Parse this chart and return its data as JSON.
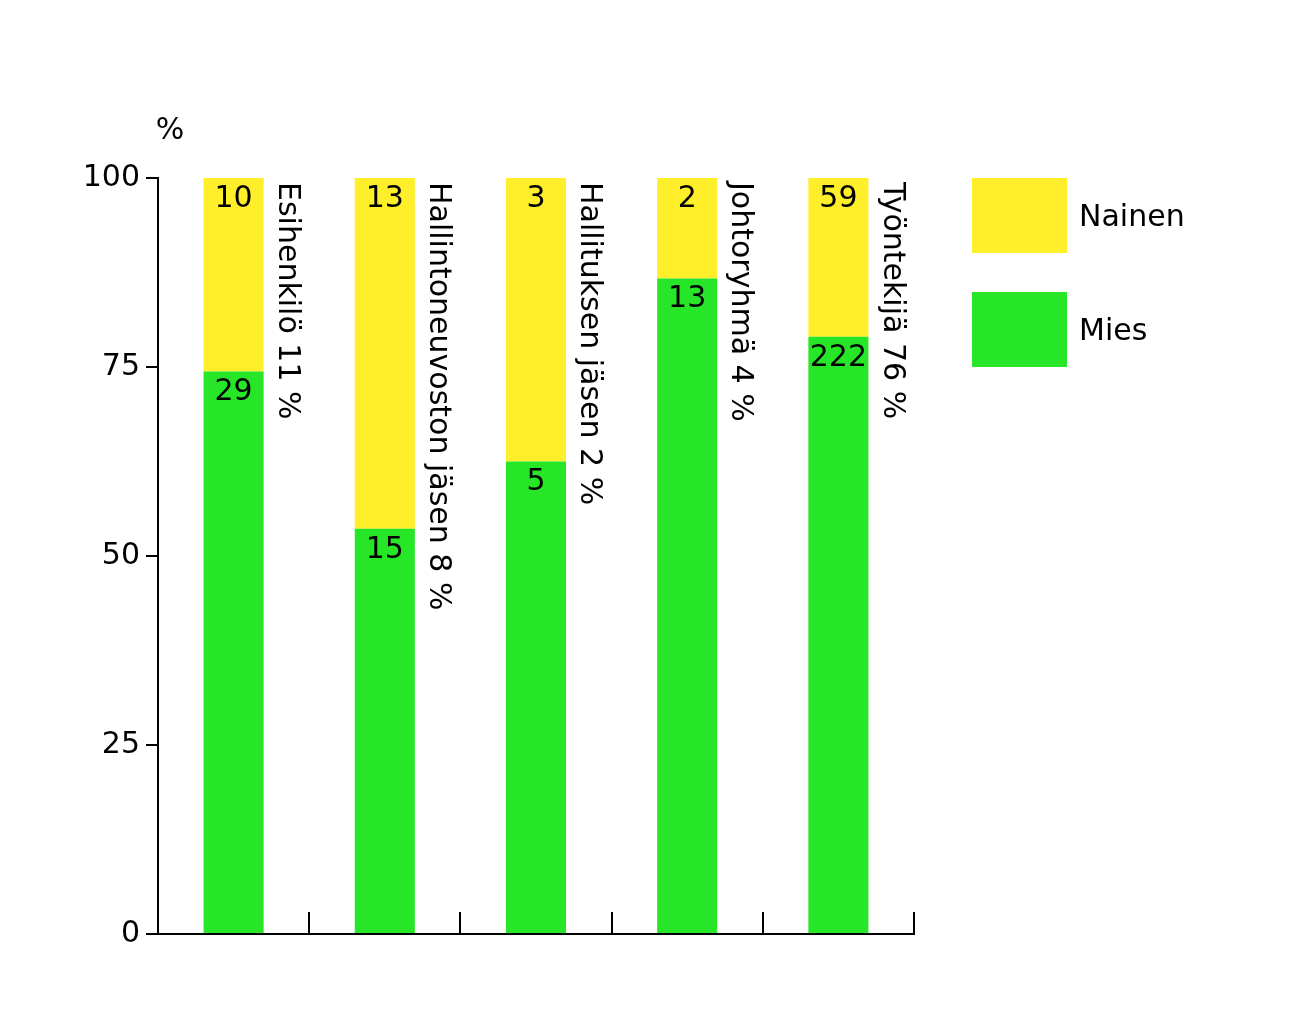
{
  "chart_data": {
    "type": "bar",
    "stacked": true,
    "ylabel": "%",
    "categories": [
      "Esihenkilö 11 %",
      "Hallintoneuvoston jäsen 8 %",
      "Hallituksen jäsen 2 %",
      "Johtoryhmä 4 %",
      "Työntekijä 76 %"
    ],
    "series": [
      {
        "name": "Mies",
        "color": "#27e627",
        "values": [
          74.4,
          53.6,
          62.5,
          86.7,
          79.0
        ]
      },
      {
        "name": "Nainen",
        "color": "#ffee2a",
        "values": [
          25.6,
          46.4,
          37.5,
          13.3,
          21.0
        ]
      }
    ],
    "annotations": [
      "29",
      "15",
      "5",
      "13",
      "222",
      "10",
      "13",
      "3",
      "2",
      "59"
    ],
    "ylim": [
      0,
      100
    ],
    "yticks": [
      0,
      25,
      50,
      75,
      100
    ],
    "grid": false,
    "legend": "top right"
  }
}
